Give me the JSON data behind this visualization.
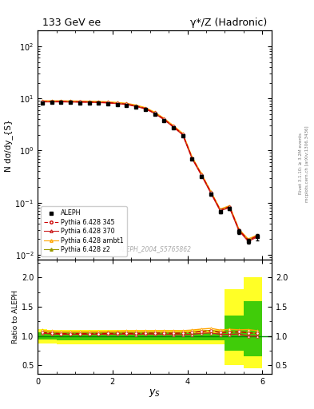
{
  "title_left": "133 GeV ee",
  "title_right": "γ*/Z (Hadronic)",
  "xlabel": "y_{S}",
  "ylabel_main": "N dσ/dy_{S}",
  "ylabel_ratio": "Ratio to ALEPH",
  "watermark": "ALEPH_2004_S5765862",
  "right_label": "mcplots.cern.ch [arXiv:1306.3436]",
  "right_label2": "Rivet 3.1.10; ≥ 3.2M events",
  "x_data": [
    0.125,
    0.375,
    0.625,
    0.875,
    1.125,
    1.375,
    1.625,
    1.875,
    2.125,
    2.375,
    2.625,
    2.875,
    3.125,
    3.375,
    3.625,
    3.875,
    4.125,
    4.375,
    4.625,
    4.875,
    5.125,
    5.375,
    5.625,
    5.875
  ],
  "aleph_y": [
    8.2,
    8.3,
    8.35,
    8.3,
    8.25,
    8.2,
    8.1,
    7.95,
    7.7,
    7.4,
    6.85,
    6.1,
    5.0,
    3.8,
    2.75,
    1.95,
    0.68,
    0.32,
    0.145,
    0.068,
    0.078,
    0.028,
    0.018,
    0.022
  ],
  "aleph_yerr": [
    0.12,
    0.12,
    0.12,
    0.12,
    0.12,
    0.12,
    0.12,
    0.11,
    0.11,
    0.1,
    0.09,
    0.09,
    0.07,
    0.06,
    0.05,
    0.04,
    0.02,
    0.015,
    0.008,
    0.005,
    0.006,
    0.003,
    0.002,
    0.003
  ],
  "py345_y": [
    8.7,
    8.7,
    8.7,
    8.65,
    8.6,
    8.55,
    8.45,
    8.3,
    8.05,
    7.75,
    7.15,
    6.4,
    5.25,
    4.0,
    2.88,
    2.05,
    0.72,
    0.345,
    0.158,
    0.072,
    0.083,
    0.03,
    0.019,
    0.023
  ],
  "py370_y": [
    8.6,
    8.6,
    8.6,
    8.55,
    8.5,
    8.45,
    8.35,
    8.2,
    7.95,
    7.65,
    7.05,
    6.3,
    5.15,
    3.92,
    2.82,
    2.0,
    0.7,
    0.335,
    0.153,
    0.07,
    0.08,
    0.029,
    0.018,
    0.022
  ],
  "pyambt1_y": [
    9.0,
    9.0,
    9.0,
    8.95,
    8.9,
    8.85,
    8.75,
    8.6,
    8.35,
    8.05,
    7.45,
    6.65,
    5.45,
    4.15,
    3.0,
    2.13,
    0.75,
    0.358,
    0.164,
    0.075,
    0.087,
    0.031,
    0.02,
    0.024
  ],
  "pyz2_y": [
    8.8,
    8.8,
    8.8,
    8.75,
    8.7,
    8.65,
    8.55,
    8.4,
    8.15,
    7.85,
    7.25,
    6.48,
    5.3,
    4.03,
    2.91,
    2.07,
    0.725,
    0.347,
    0.159,
    0.073,
    0.084,
    0.03,
    0.019,
    0.023
  ],
  "ratio_py345": [
    1.06,
    1.05,
    1.04,
    1.04,
    1.04,
    1.04,
    1.043,
    1.044,
    1.045,
    1.047,
    1.044,
    1.049,
    1.05,
    1.053,
    1.047,
    1.051,
    1.059,
    1.078,
    1.09,
    1.059,
    1.064,
    1.071,
    1.056,
    1.045
  ],
  "ratio_py370": [
    1.049,
    1.036,
    1.03,
    1.03,
    1.03,
    1.03,
    1.031,
    1.031,
    1.032,
    1.034,
    1.029,
    1.033,
    1.03,
    1.032,
    1.025,
    1.026,
    1.029,
    1.047,
    1.055,
    1.029,
    1.026,
    1.036,
    1.0,
    1.0
  ],
  "ratio_pyambt1": [
    1.098,
    1.085,
    1.078,
    1.079,
    1.079,
    1.079,
    1.081,
    1.082,
    1.084,
    1.088,
    1.088,
    1.09,
    1.09,
    1.092,
    1.091,
    1.092,
    1.103,
    1.119,
    1.131,
    1.103,
    1.115,
    1.107,
    1.111,
    1.091
  ],
  "ratio_pyz2": [
    1.073,
    1.061,
    1.054,
    1.054,
    1.055,
    1.055,
    1.056,
    1.057,
    1.058,
    1.061,
    1.058,
    1.062,
    1.06,
    1.061,
    1.058,
    1.062,
    1.066,
    1.084,
    1.097,
    1.074,
    1.077,
    1.071,
    1.056,
    1.045
  ],
  "yellow_band_high": [
    1.12,
    1.11,
    1.1,
    1.1,
    1.1,
    1.1,
    1.1,
    1.1,
    1.1,
    1.1,
    1.1,
    1.1,
    1.1,
    1.1,
    1.1,
    1.1,
    1.1,
    1.1,
    1.1,
    1.1,
    1.8,
    1.8,
    2.0,
    2.0
  ],
  "yellow_band_low": [
    0.88,
    0.87,
    0.86,
    0.86,
    0.86,
    0.86,
    0.86,
    0.86,
    0.86,
    0.86,
    0.86,
    0.86,
    0.86,
    0.86,
    0.86,
    0.86,
    0.86,
    0.86,
    0.86,
    0.86,
    0.5,
    0.5,
    0.45,
    0.45
  ],
  "green_band_high": [
    1.06,
    1.055,
    1.05,
    1.05,
    1.05,
    1.05,
    1.05,
    1.05,
    1.05,
    1.05,
    1.05,
    1.05,
    1.05,
    1.05,
    1.05,
    1.05,
    1.05,
    1.05,
    1.05,
    1.05,
    1.35,
    1.35,
    1.6,
    1.6
  ],
  "green_band_low": [
    0.94,
    0.935,
    0.93,
    0.93,
    0.93,
    0.93,
    0.93,
    0.93,
    0.93,
    0.93,
    0.93,
    0.93,
    0.93,
    0.93,
    0.93,
    0.93,
    0.93,
    0.93,
    0.93,
    0.93,
    0.75,
    0.75,
    0.65,
    0.65
  ],
  "xlim": [
    0,
    6.25
  ],
  "ylim_main": [
    0.008,
    200
  ],
  "ylim_ratio": [
    0.35,
    2.3
  ],
  "color_aleph": "#000000",
  "color_py345": "#cc0000",
  "color_py370": "#cc2222",
  "color_pyambt1": "#ffa500",
  "color_pyz2": "#999900",
  "color_green_band": "#00bb00",
  "color_yellow_band": "#ffff00",
  "color_ratio_line": "#008800",
  "bin_edges": [
    0.0,
    0.25,
    0.5,
    0.75,
    1.0,
    1.25,
    1.5,
    1.75,
    2.0,
    2.25,
    2.5,
    2.75,
    3.0,
    3.25,
    3.5,
    3.75,
    4.0,
    4.25,
    4.5,
    4.75,
    5.0,
    5.25,
    5.5,
    5.75,
    6.0
  ]
}
